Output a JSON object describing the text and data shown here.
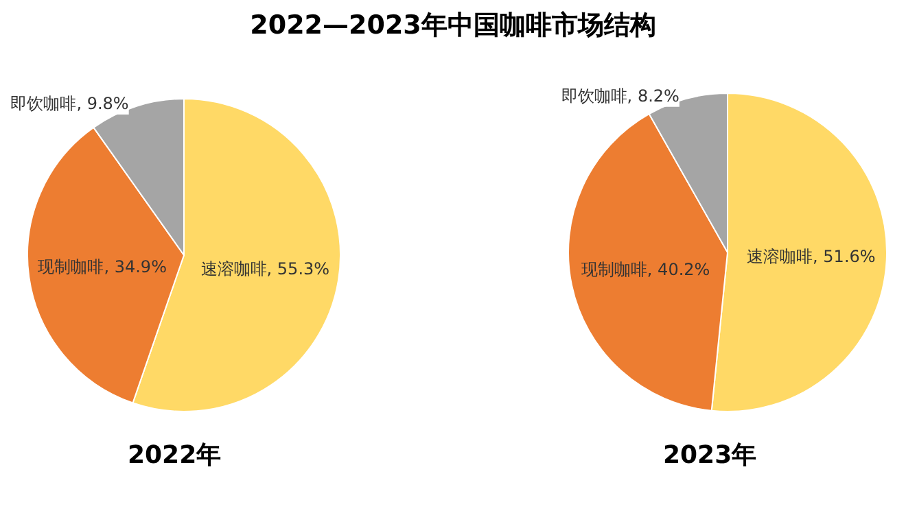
{
  "chart_data": [
    {
      "type": "pie",
      "title": "2022—2023年中国咖啡市场结构",
      "xlabel": "2022年",
      "categories": [
        "速溶咖啡",
        "现制咖啡",
        "即饮咖啡"
      ],
      "values": [
        55.3,
        34.9,
        9.8
      ],
      "value_labels": [
        "55.3%",
        "34.9%",
        "9.8%"
      ],
      "colors": [
        "#ffd966",
        "#ed7d31",
        "#a5a5a5"
      ],
      "legend": false
    },
    {
      "type": "pie",
      "xlabel": "2023年",
      "categories": [
        "速溶咖啡",
        "现制咖啡",
        "即饮咖啡"
      ],
      "values": [
        51.6,
        40.2,
        8.2
      ],
      "value_labels": [
        "51.6%",
        "40.2%",
        "8.2%"
      ],
      "colors": [
        "#ffd966",
        "#ed7d31",
        "#a5a5a5"
      ],
      "legend": false
    }
  ]
}
